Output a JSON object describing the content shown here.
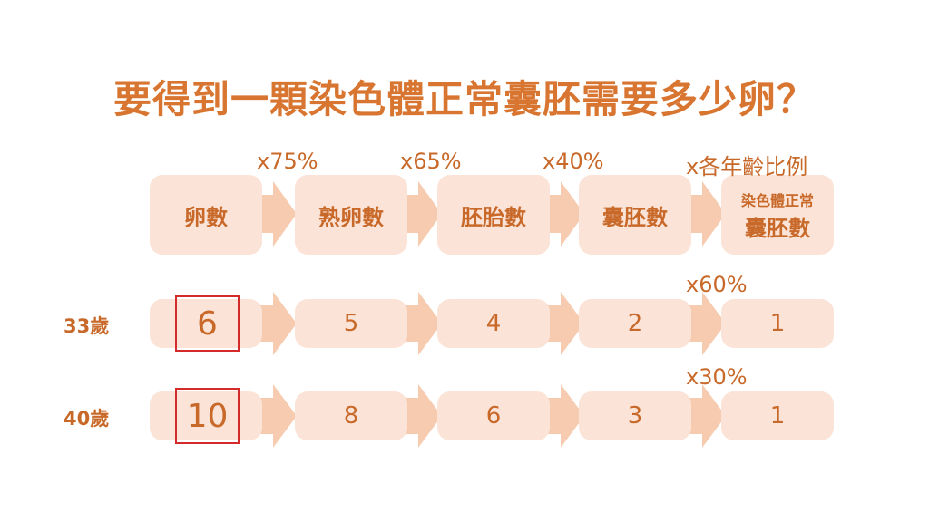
{
  "title": "要得到一顆染色體正常囊胚需要多少卵？",
  "headers": [
    "卵數",
    "熟卵數",
    "胚胎數",
    "囊胚數",
    {
      "line1": "染色體正常",
      "line2": "囊胚數"
    }
  ],
  "header_multipliers": [
    "x75%",
    "x65%",
    "x40%",
    "x各年齡比例"
  ],
  "rows": [
    {
      "age": "33歲",
      "values": [
        "6",
        "5",
        "4",
        "2",
        "1"
      ],
      "final_multiplier": "x60%"
    },
    {
      "age": "40歲",
      "values": [
        "10",
        "8",
        "6",
        "3",
        "1"
      ],
      "final_multiplier": "x30%"
    }
  ],
  "colors": {
    "text": "#c8692a",
    "box": "#fbe4d7",
    "arrow": "#f6cbb0",
    "highlight": "#d42a2a"
  }
}
